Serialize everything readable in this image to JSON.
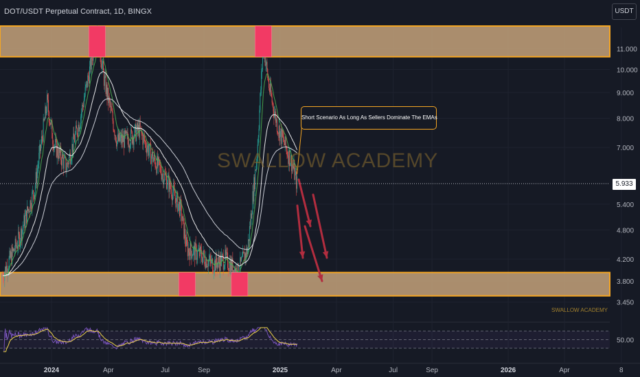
{
  "header": {
    "title": "DOT/USDT Perpetual Contract, 1D, BINGX",
    "currency": "USDT"
  },
  "watermark": "SWALLOW ACADEMY",
  "footer_watermark": "SWALLOW ACADEMY",
  "annotation": "Short Scenario As Long As Sellers Dominate The EMAs",
  "current_price_label": "5.933",
  "colors": {
    "background": "#161a25",
    "zone_fill": "#c4a27a",
    "zone_border": "#f5a623",
    "zone_marker": "#f23a64",
    "bull_candle": "#26a69a",
    "bear_candle": "#ef5350",
    "ema_fast": "#4caf50",
    "ema_slow": "#ffffff",
    "arrows": "#b22d3f",
    "rsi_line": "#7e57c2",
    "rsi_ma": "#f0d44c"
  },
  "chart_data": {
    "type": "candlestick",
    "title": "DOT/USDT Perpetual Contract, 1D, BINGX",
    "y_axis": {
      "scale": "log",
      "ticks": [
        "11.000",
        "10.000",
        "9.000",
        "8.000",
        "7.000",
        "5.933",
        "5.400",
        "4.800",
        "4.200",
        "3.800",
        "3.450"
      ],
      "range": [
        3.3,
        12.5
      ]
    },
    "x_axis": {
      "ticks": [
        {
          "label": "2024",
          "bold": true
        },
        {
          "label": "Apr",
          "bold": false
        },
        {
          "label": "Jul",
          "bold": false
        },
        {
          "label": "Sep",
          "bold": false
        },
        {
          "label": "2025",
          "bold": true
        },
        {
          "label": "Apr",
          "bold": false
        },
        {
          "label": "Jul",
          "bold": false
        },
        {
          "label": "Sep",
          "bold": false
        },
        {
          "label": "2026",
          "bold": true
        },
        {
          "label": "Apr",
          "bold": false
        },
        {
          "label": "8",
          "bold": false
        }
      ]
    },
    "price_path": [
      [
        "2023-10-15",
        3.9
      ],
      [
        "2023-11-10",
        4.6
      ],
      [
        "2023-12-05",
        5.8
      ],
      [
        "2023-12-25",
        8.6
      ],
      [
        "2024-01-05",
        7.1
      ],
      [
        "2024-01-25",
        6.4
      ],
      [
        "2024-02-15",
        7.9
      ],
      [
        "2024-03-05",
        10.4
      ],
      [
        "2024-03-14",
        12.0
      ],
      [
        "2024-03-25",
        9.6
      ],
      [
        "2024-04-15",
        7.2
      ],
      [
        "2024-05-05",
        7.3
      ],
      [
        "2024-05-20",
        7.6
      ],
      [
        "2024-06-10",
        6.7
      ],
      [
        "2024-07-05",
        6.0
      ],
      [
        "2024-07-25",
        5.3
      ],
      [
        "2024-08-05",
        4.4
      ],
      [
        "2024-08-25",
        4.3
      ],
      [
        "2024-09-15",
        4.1
      ],
      [
        "2024-10-05",
        4.2
      ],
      [
        "2024-10-25",
        3.95
      ],
      [
        "2024-11-10",
        4.4
      ],
      [
        "2024-11-25",
        6.8
      ],
      [
        "2024-12-05",
        11.2
      ],
      [
        "2024-12-15",
        9.1
      ],
      [
        "2024-12-28",
        7.7
      ],
      [
        "2025-01-10",
        7.0
      ],
      [
        "2025-01-20",
        6.5
      ],
      [
        "2025-01-28",
        5.933
      ]
    ],
    "zones": [
      {
        "name": "resistance",
        "top": 12.2,
        "bottom": 10.6
      },
      {
        "name": "support",
        "top": 3.95,
        "bottom": 3.55
      }
    ],
    "current_price": 5.933,
    "indicators": [
      "EMA (fast)",
      "EMA (slow)",
      "EMA (long)"
    ],
    "rsi": {
      "level_label": "50.00",
      "upper_band": 70,
      "mid": 50,
      "lower_band": 30
    }
  }
}
